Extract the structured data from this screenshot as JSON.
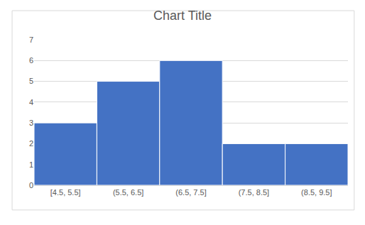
{
  "chart_data": {
    "type": "histogram",
    "title": "Chart Title",
    "categories": [
      "[4.5, 5.5]",
      "(5.5, 6.5]",
      "(6.5, 7.5]",
      "(7.5, 8.5]",
      "(8.5, 9.5]"
    ],
    "bins": [
      4.5,
      5.5,
      6.5,
      7.5,
      8.5,
      9.5
    ],
    "values": [
      3,
      5,
      6,
      2,
      2
    ],
    "color": "#4472c4",
    "ylim": [
      0,
      7
    ],
    "yticks": [
      0,
      1,
      2,
      3,
      4,
      5,
      6,
      7
    ],
    "grid": true
  }
}
